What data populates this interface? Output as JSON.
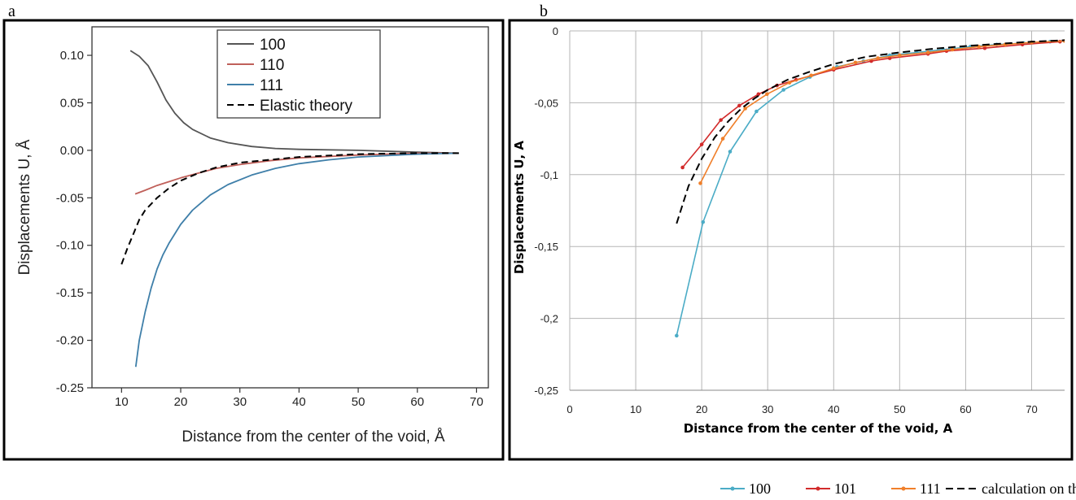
{
  "panel_labels": {
    "a": "a",
    "b": "b"
  },
  "chart_data": [
    {
      "type": "line",
      "xlabel": "Distance from the center of the void, Å",
      "ylabel": "Displacements U, Å",
      "xlim": [
        5,
        72
      ],
      "ylim": [
        -0.25,
        0.13
      ],
      "xticks": [
        "10",
        "20",
        "30",
        "40",
        "50",
        "60",
        "70"
      ],
      "yticks": [
        "-0.25",
        "-0.20",
        "-0.15",
        "-0.10",
        "-0.05",
        "0.00",
        "0.05",
        "0.10"
      ],
      "legend_position": "top-right",
      "series": [
        {
          "name": "100",
          "color": "#555555",
          "dash": false,
          "x": [
            11.5,
            13,
            14.5,
            16,
            17.5,
            19,
            20.5,
            22,
            25,
            28,
            32,
            36,
            40,
            50,
            60,
            67
          ],
          "y": [
            0.105,
            0.099,
            0.089,
            0.072,
            0.053,
            0.039,
            0.029,
            0.022,
            0.013,
            0.008,
            0.004,
            0.002,
            0.001,
            0.0,
            -0.002,
            -0.003
          ]
        },
        {
          "name": "110",
          "color": "#c0605a",
          "dash": false,
          "x": [
            12.3,
            14,
            16,
            18,
            20,
            23,
            26,
            30,
            35,
            40,
            50,
            60,
            67
          ],
          "y": [
            -0.046,
            -0.042,
            -0.037,
            -0.033,
            -0.029,
            -0.024,
            -0.019,
            -0.015,
            -0.011,
            -0.008,
            -0.005,
            -0.003,
            -0.003
          ]
        },
        {
          "name": "111",
          "color": "#3f7fa9",
          "dash": false,
          "x": [
            12.4,
            13,
            14,
            15,
            16,
            17,
            18,
            20,
            22,
            25,
            28,
            32,
            36,
            40,
            45,
            50,
            60,
            67
          ],
          "y": [
            -0.228,
            -0.2,
            -0.17,
            -0.145,
            -0.125,
            -0.11,
            -0.098,
            -0.078,
            -0.063,
            -0.047,
            -0.036,
            -0.026,
            -0.019,
            -0.014,
            -0.01,
            -0.007,
            -0.004,
            -0.003
          ]
        },
        {
          "name": "Elastic theory",
          "color": "#000000",
          "dash": true,
          "x": [
            10,
            11,
            12,
            13,
            14,
            16,
            18,
            20,
            23,
            26,
            30,
            35,
            40,
            50,
            60,
            67
          ],
          "y": [
            -0.12,
            -0.103,
            -0.088,
            -0.073,
            -0.063,
            -0.05,
            -0.04,
            -0.032,
            -0.024,
            -0.018,
            -0.013,
            -0.01,
            -0.007,
            -0.004,
            -0.003,
            -0.003
          ]
        }
      ]
    },
    {
      "type": "line",
      "xlabel": "Distance from the center of the void, A",
      "ylabel": "Displacements U, A",
      "xlim": [
        0,
        75
      ],
      "ylim": [
        -0.25,
        0
      ],
      "xticks": [
        "0",
        "10",
        "20",
        "30",
        "40",
        "50",
        "60",
        "70"
      ],
      "yticks": [
        "0",
        "-0,05",
        "-0,1",
        "-0,15",
        "-0,2",
        "-0,25"
      ],
      "grid": true,
      "legend_position": "bottom",
      "series": [
        {
          "name": "100",
          "color": "#4bacc6",
          "dash": false,
          "markers": true,
          "x": [
            16.2,
            20.2,
            24.3,
            28.3,
            32.4,
            36.4,
            40.5,
            44.5,
            48.5,
            52.6,
            56.6,
            60.7,
            64.7,
            68.8,
            72.8,
            75
          ],
          "y": [
            -0.212,
            -0.133,
            -0.084,
            -0.056,
            -0.041,
            -0.032,
            -0.025,
            -0.021,
            -0.017,
            -0.015,
            -0.013,
            -0.011,
            -0.0095,
            -0.0085,
            -0.0075,
            -0.007
          ]
        },
        {
          "name": "101",
          "color": "#d22b2b",
          "dash": false,
          "markers": true,
          "x": [
            17.1,
            20,
            22.9,
            25.7,
            28.6,
            31.4,
            34.3,
            40,
            45.7,
            48.5,
            54.3,
            57.1,
            62.9,
            68.6,
            74.3
          ],
          "y": [
            -0.095,
            -0.079,
            -0.062,
            -0.052,
            -0.044,
            -0.038,
            -0.034,
            -0.027,
            -0.021,
            -0.019,
            -0.016,
            -0.014,
            -0.012,
            -0.0095,
            -0.0075
          ]
        },
        {
          "name": "111",
          "color": "#f07f2a",
          "dash": false,
          "markers": true,
          "x": [
            19.8,
            23.2,
            26.6,
            29.9,
            33.3,
            36.6,
            40,
            43.3,
            46.7,
            50,
            54.3,
            58,
            62,
            66,
            70,
            75
          ],
          "y": [
            -0.106,
            -0.075,
            -0.054,
            -0.044,
            -0.036,
            -0.031,
            -0.026,
            -0.022,
            -0.019,
            -0.017,
            -0.015,
            -0.013,
            -0.011,
            -0.0095,
            -0.008,
            -0.007
          ]
        },
        {
          "name": "calculation on the theory of elasticity",
          "color": "#000000",
          "dash": true,
          "markers": false,
          "x": [
            16.2,
            18,
            20,
            22,
            24,
            26,
            28,
            30,
            33,
            36,
            40,
            45,
            50,
            55,
            60,
            65,
            70,
            75
          ],
          "y": [
            -0.134,
            -0.108,
            -0.089,
            -0.074,
            -0.063,
            -0.054,
            -0.047,
            -0.041,
            -0.034,
            -0.029,
            -0.023,
            -0.018,
            -0.015,
            -0.0125,
            -0.0105,
            -0.009,
            -0.0075,
            -0.0065
          ]
        }
      ]
    }
  ]
}
